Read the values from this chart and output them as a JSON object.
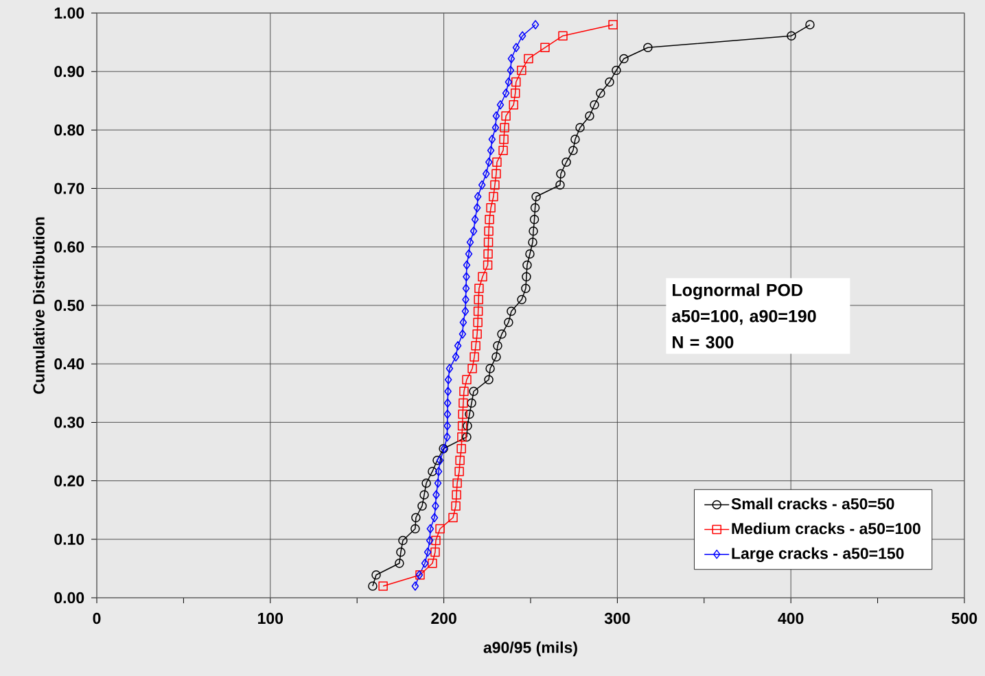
{
  "chart_data": {
    "type": "line",
    "xlabel": "a90/95 (mils)",
    "ylabel": "Cumulative Distribution",
    "xlim": [
      0,
      500
    ],
    "ylim": [
      0,
      1
    ],
    "xticks": [
      0,
      {
        "value": 50,
        "label": null
      },
      100,
      {
        "value": 150,
        "label": null
      },
      200,
      {
        "value": 250,
        "label": null
      },
      300,
      {
        "value": 350,
        "label": null
      },
      400,
      {
        "value": 450,
        "label": null
      },
      500
    ],
    "yticks": [
      {
        "value": 0,
        "label": "0.00"
      },
      {
        "value": 0.1,
        "label": "0.10"
      },
      {
        "value": 0.2,
        "label": "0.20"
      },
      {
        "value": 0.3,
        "label": "0.30"
      },
      {
        "value": 0.4,
        "label": "0.40"
      },
      {
        "value": 0.5,
        "label": "0.50"
      },
      {
        "value": 0.6,
        "label": "0.60"
      },
      {
        "value": 0.7,
        "label": "0.70"
      },
      {
        "value": 0.8,
        "label": "0.80"
      },
      {
        "value": 0.9,
        "label": "0.90"
      },
      {
        "value": 1,
        "label": "1.00"
      }
    ],
    "grid": true,
    "legend": "bottom right",
    "line_style": "solid",
    "annotations": [
      "Lognormal POD",
      "a50=100, a90=190",
      "N = 300"
    ],
    "series": [
      {
        "name": "Small cracks - a50=50",
        "color": "#000000",
        "marker": "circle",
        "x": [
          159.0,
          161.0,
          174.4,
          175.2,
          176.4,
          183.5,
          183.9,
          187.5,
          188.7,
          189.9,
          193.4,
          196.2,
          199.8,
          213.2,
          213.6,
          214.8,
          216.0,
          217.2,
          225.9,
          226.7,
          230.2,
          231.0,
          233.4,
          237.3,
          238.9,
          244.9,
          247.2,
          247.6,
          248.0,
          249.6,
          251.2,
          251.6,
          252.2,
          252.6,
          253.2,
          267.0,
          267.4,
          270.6,
          274.5,
          275.7,
          278.5,
          284.0,
          286.8,
          290.3,
          295.5,
          299.4,
          303.8,
          317.6,
          400.3,
          411.0
        ],
        "values": [
          0.02,
          0.039,
          0.059,
          0.078,
          0.098,
          0.118,
          0.137,
          0.157,
          0.176,
          0.196,
          0.216,
          0.235,
          0.255,
          0.275,
          0.294,
          0.314,
          0.333,
          0.353,
          0.373,
          0.392,
          0.412,
          0.431,
          0.451,
          0.471,
          0.49,
          0.51,
          0.529,
          0.549,
          0.569,
          0.588,
          0.608,
          0.627,
          0.647,
          0.667,
          0.686,
          0.706,
          0.725,
          0.745,
          0.765,
          0.784,
          0.804,
          0.824,
          0.843,
          0.863,
          0.882,
          0.902,
          0.922,
          0.941,
          0.961,
          0.98
        ]
      },
      {
        "name": "Medium cracks - a50=100",
        "color": "#ff0000",
        "marker": "square",
        "x": [
          165.0,
          186.3,
          193.4,
          195.0,
          195.4,
          197.8,
          205.3,
          206.9,
          207.3,
          207.7,
          208.9,
          209.3,
          210.1,
          210.4,
          210.7,
          210.9,
          211.2,
          211.6,
          213.2,
          216.4,
          217.6,
          218.4,
          219.2,
          219.6,
          219.8,
          220.0,
          220.3,
          222.3,
          225.3,
          225.5,
          225.7,
          225.9,
          226.3,
          227.1,
          228.6,
          229.4,
          230.2,
          230.6,
          234.2,
          234.6,
          235.0,
          235.8,
          240.2,
          241.2,
          241.6,
          244.8,
          248.8,
          258.3,
          268.6,
          297.5
        ],
        "values": [
          0.02,
          0.039,
          0.059,
          0.078,
          0.098,
          0.118,
          0.137,
          0.157,
          0.176,
          0.196,
          0.216,
          0.235,
          0.255,
          0.275,
          0.294,
          0.314,
          0.333,
          0.353,
          0.373,
          0.392,
          0.412,
          0.431,
          0.451,
          0.471,
          0.49,
          0.51,
          0.529,
          0.549,
          0.569,
          0.588,
          0.608,
          0.627,
          0.647,
          0.667,
          0.686,
          0.706,
          0.725,
          0.745,
          0.765,
          0.784,
          0.804,
          0.824,
          0.843,
          0.863,
          0.882,
          0.902,
          0.922,
          0.941,
          0.961,
          0.98
        ]
      },
      {
        "name": "Large cracks - a50=150",
        "color": "#0000ff",
        "marker": "diamond",
        "x": [
          183.5,
          185.9,
          189.1,
          190.7,
          191.9,
          192.2,
          194.6,
          195.2,
          195.6,
          196.6,
          197.0,
          197.8,
          200.2,
          201.9,
          202.0,
          202.1,
          202.2,
          202.4,
          202.6,
          203.3,
          206.9,
          208.1,
          210.8,
          211.2,
          212.4,
          212.6,
          212.8,
          213.0,
          213.2,
          214.4,
          215.2,
          217.2,
          218.0,
          219.2,
          219.6,
          222.0,
          224.4,
          226.0,
          227.1,
          227.8,
          229.8,
          230.2,
          232.6,
          235.8,
          237.3,
          238.5,
          238.9,
          241.7,
          245.3,
          252.8
        ],
        "values": [
          0.02,
          0.039,
          0.059,
          0.078,
          0.098,
          0.118,
          0.137,
          0.157,
          0.176,
          0.196,
          0.216,
          0.235,
          0.255,
          0.275,
          0.294,
          0.314,
          0.333,
          0.353,
          0.373,
          0.392,
          0.412,
          0.431,
          0.451,
          0.471,
          0.49,
          0.51,
          0.529,
          0.549,
          0.569,
          0.588,
          0.608,
          0.627,
          0.647,
          0.667,
          0.686,
          0.706,
          0.725,
          0.745,
          0.765,
          0.784,
          0.804,
          0.824,
          0.843,
          0.863,
          0.882,
          0.902,
          0.922,
          0.941,
          0.961,
          0.98
        ]
      }
    ]
  }
}
